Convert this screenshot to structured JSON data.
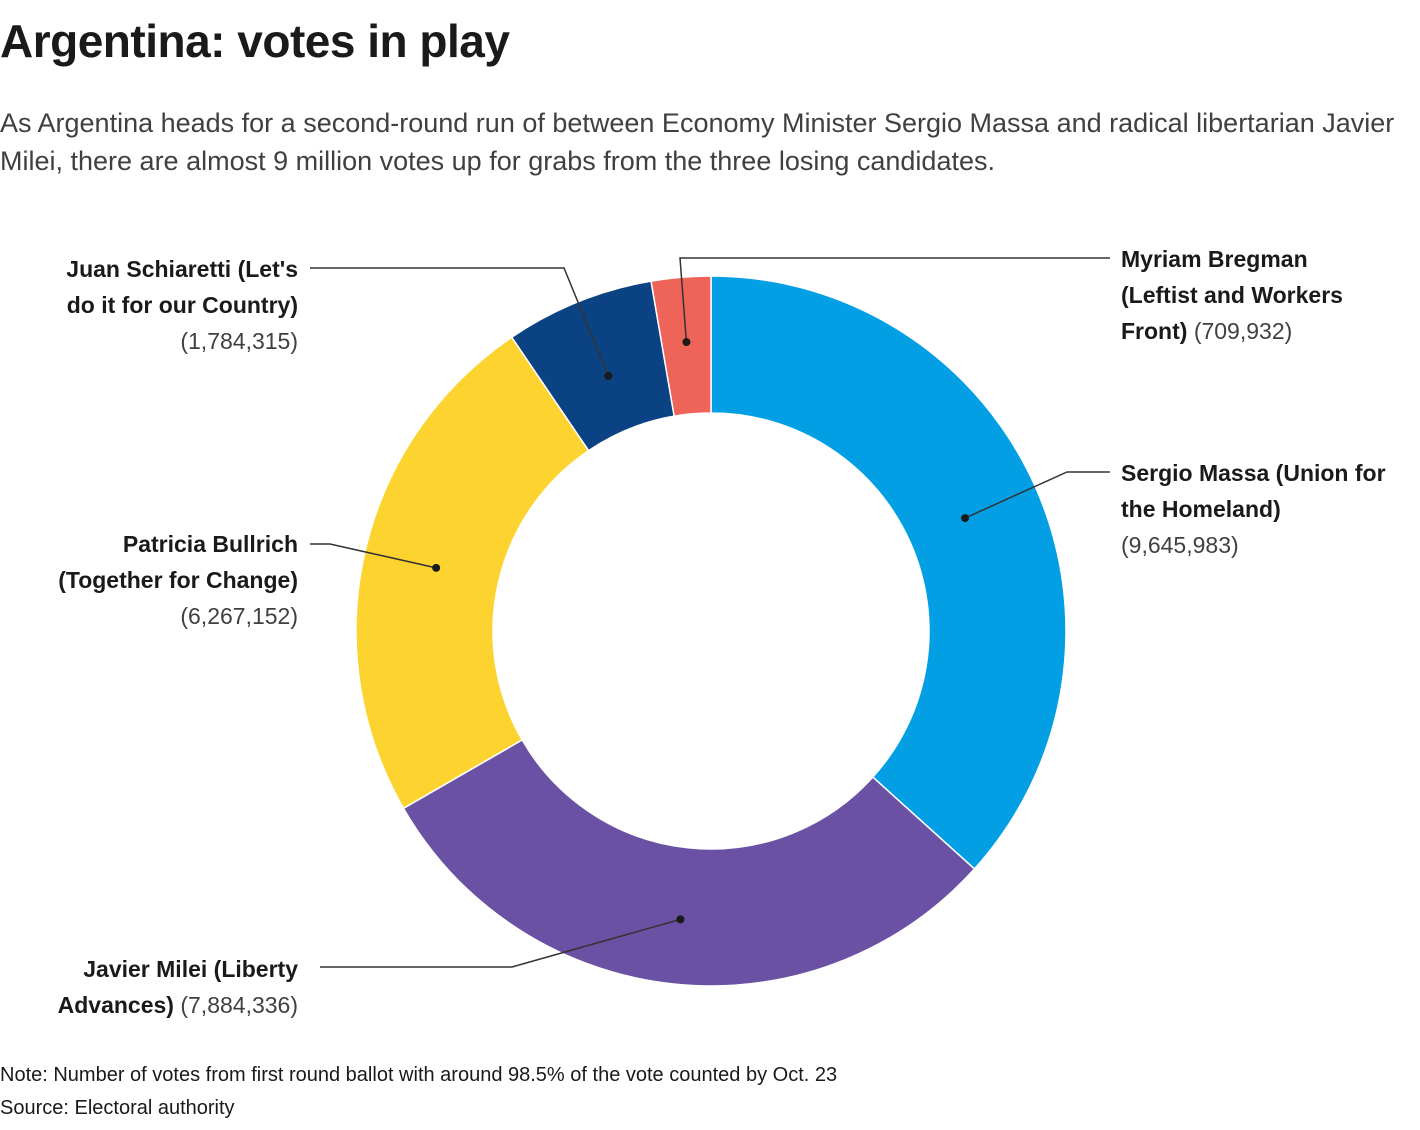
{
  "title": "Argentina: votes in play",
  "subtitle": "As Argentina heads for a second-round run of between Economy Minister Sergio Massa and radical libertarian Javier Milei, there are almost 9 million votes up for grabs from the three losing candidates.",
  "chart_data": {
    "type": "pie",
    "donut": true,
    "start_angle_deg": 0,
    "direction": "clockwise",
    "slices": [
      {
        "name": "Sergio Massa (Union for the Homeland)",
        "value": 9645983,
        "value_label": "(9,645,983)",
        "color": "#039fe5"
      },
      {
        "name": "Javier Milei (Liberty Advances)",
        "value": 7884336,
        "value_label": "(7,884,336)",
        "color": "#6a51a4"
      },
      {
        "name": "Patricia Bullrich (Together for Change)",
        "value": 6267152,
        "value_label": "(6,267,152)",
        "color": "#fdd330"
      },
      {
        "name": "Juan Schiaretti (Let's do it for our Country)",
        "value": 1784315,
        "value_label": "(1,784,315)",
        "color": "#0a4284"
      },
      {
        "name": "Myriam Bregman (Leftist and Workers Front)",
        "value": 709932,
        "value_label": "(709,932)",
        "color": "#ee6459"
      }
    ],
    "labels": {
      "massa": {
        "l1": "Sergio Massa (Union for",
        "l2": "the Homeland)",
        "l3": "(9,645,983)"
      },
      "milei": {
        "l1": "Javier Milei (Liberty",
        "l2": "Advances)",
        "l2v": "(7,884,336)"
      },
      "bullrich": {
        "l1": "Patricia Bullrich",
        "l2": "(Together for Change)",
        "l3": "(6,267,152)"
      },
      "schiaretti": {
        "l1": "Juan Schiaretti (Let's",
        "l2": "do it for our Country)",
        "l3": "(1,784,315)"
      },
      "bregman": {
        "l1": "Myriam Bregman",
        "l2": "(Leftist and Workers",
        "l3": "Front)",
        "l3v": "(709,932)"
      }
    }
  },
  "footer": {
    "note": "Note: Number of votes from first round ballot with around 98.5% of the vote counted by Oct. 23",
    "source": "Source: Electoral authority"
  }
}
